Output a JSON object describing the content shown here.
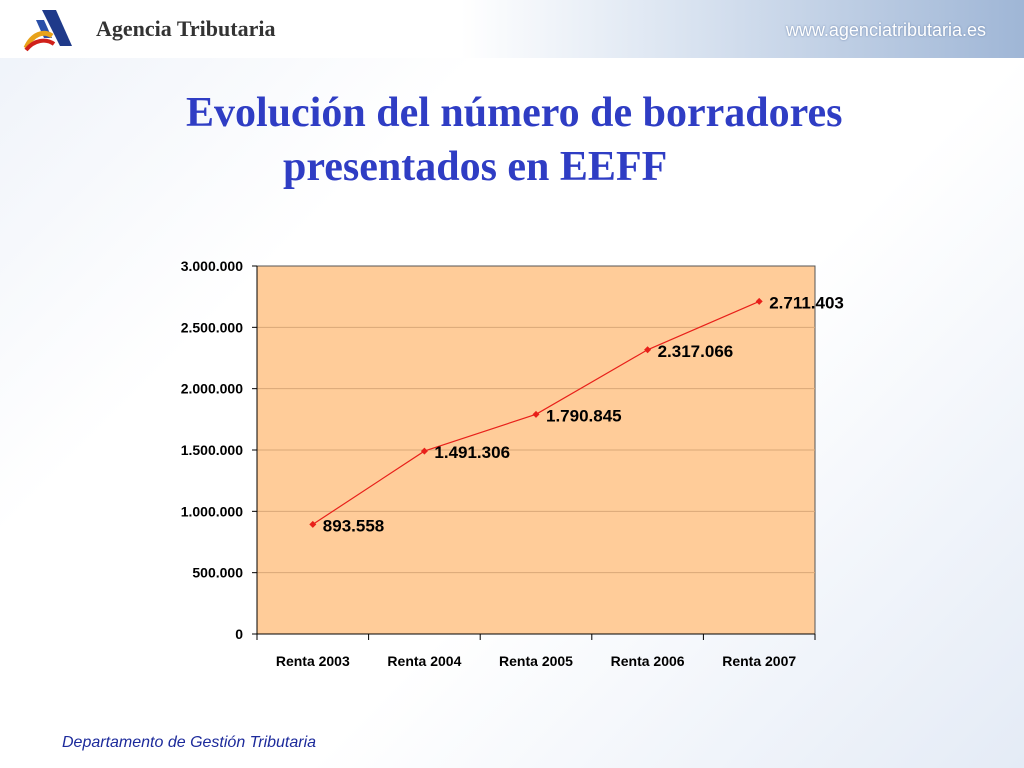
{
  "header": {
    "brand": "Agencia Tributaria",
    "url": "www.agenciatributaria.es",
    "logo_icon": "agencia-tributaria-logo-icon"
  },
  "title": {
    "line1": "Evolución del número de borradores",
    "line2": "presentados en EEFF"
  },
  "chart_data": {
    "type": "line",
    "categories": [
      "Renta 2003",
      "Renta 2004",
      "Renta 2005",
      "Renta 2006",
      "Renta 2007"
    ],
    "values": [
      893558,
      1491306,
      1790845,
      2317066,
      2711403
    ],
    "value_labels": [
      "893.558",
      "1.491.306",
      "1.790.845",
      "2.317.066",
      "2.711.403"
    ],
    "ylim": [
      0,
      3000000
    ],
    "yticks": [
      0,
      500000,
      1000000,
      1500000,
      2000000,
      2500000,
      3000000
    ],
    "ytick_labels": [
      "0",
      "500.000",
      "1.000.000",
      "1.500.000",
      "2.000.000",
      "2.500.000",
      "3.000.000"
    ],
    "grid": true,
    "plot_background": "#ffcc99",
    "line_color": "#e8201a",
    "gridline_color": "#d9a878"
  },
  "footer": {
    "text": "Departamento de Gestión Tributaria"
  }
}
